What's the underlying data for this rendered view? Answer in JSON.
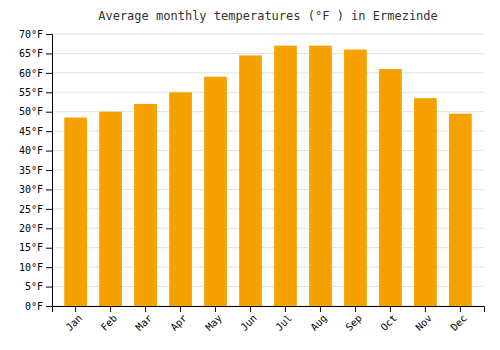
{
  "chart_data": {
    "type": "bar",
    "title": "Average monthly temperatures (°F ) in Ermezinde",
    "categories": [
      "Jan",
      "Feb",
      "Mar",
      "Apr",
      "May",
      "Jun",
      "Jul",
      "Aug",
      "Sep",
      "Oct",
      "Nov",
      "Dec"
    ],
    "values": [
      48.5,
      50.0,
      52.0,
      55.0,
      59.0,
      64.5,
      67.0,
      67.0,
      66.0,
      61.0,
      53.5,
      49.5
    ],
    "color": "#F5A200",
    "ylim": [
      0,
      70
    ],
    "yticks": [
      {
        "value": 0,
        "label": "0°F"
      },
      {
        "value": 5,
        "label": "5°F"
      },
      {
        "value": 10,
        "label": "10°F"
      },
      {
        "value": 15,
        "label": "15°F"
      },
      {
        "value": 20,
        "label": "20°F"
      },
      {
        "value": 25,
        "label": "25°F"
      },
      {
        "value": 30,
        "label": "30°F"
      },
      {
        "value": 35,
        "label": "35°F"
      },
      {
        "value": 40,
        "label": "40°F"
      },
      {
        "value": 45,
        "label": "45°F"
      },
      {
        "value": 50,
        "label": "50°F"
      },
      {
        "value": 55,
        "label": "55°F"
      },
      {
        "value": 60,
        "label": "60°F"
      },
      {
        "value": 65,
        "label": "65°F"
      },
      {
        "value": 70,
        "label": "70°F"
      }
    ],
    "grid": true
  }
}
